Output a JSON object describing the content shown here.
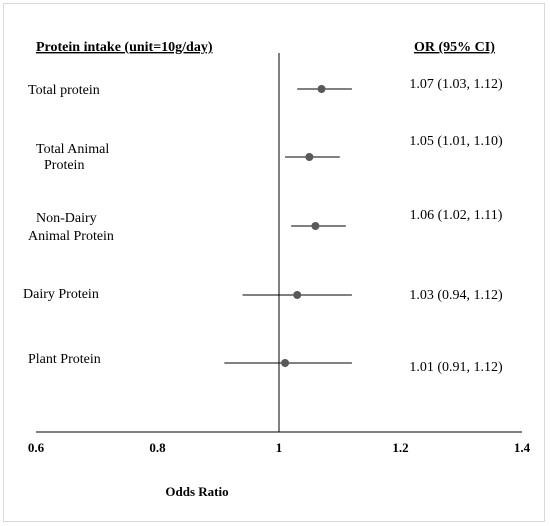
{
  "chart_data": {
    "type": "forest",
    "column_headers": {
      "left": "Protein intake (unit=10g/day)",
      "right": "OR (95% CI)"
    },
    "rows": [
      {
        "label_lines": [
          "Total protein"
        ],
        "or": 1.07,
        "ci_low": 1.03,
        "ci_high": 1.12,
        "ci_text": "1.07 (1.03, 1.12)"
      },
      {
        "label_lines": [
          "Total Animal",
          "Protein"
        ],
        "or": 1.05,
        "ci_low": 1.01,
        "ci_high": 1.1,
        "ci_text": "1.05 (1.01, 1.10)"
      },
      {
        "label_lines": [
          "Non-Dairy",
          "Animal Protein"
        ],
        "or": 1.06,
        "ci_low": 1.02,
        "ci_high": 1.11,
        "ci_text": "1.06 (1.02, 1.11)"
      },
      {
        "label_lines": [
          "Dairy Protein"
        ],
        "or": 1.03,
        "ci_low": 0.94,
        "ci_high": 1.12,
        "ci_text": "1.03 (0.94, 1.12)"
      },
      {
        "label_lines": [
          "Plant Protein"
        ],
        "or": 1.01,
        "ci_low": 0.91,
        "ci_high": 1.12,
        "ci_text": "1.01 (0.91, 1.12)"
      }
    ],
    "xlabel": "Odds Ratio",
    "xlim": [
      0.6,
      1.4
    ],
    "xticks": [
      0.6,
      0.8,
      1,
      1.2,
      1.4
    ],
    "xtick_labels": [
      "0.6",
      "0.8",
      "1",
      "1.2",
      "1.4"
    ],
    "reference_line": 1,
    "colors": {
      "marker": "#595959",
      "line": "#000000"
    }
  }
}
